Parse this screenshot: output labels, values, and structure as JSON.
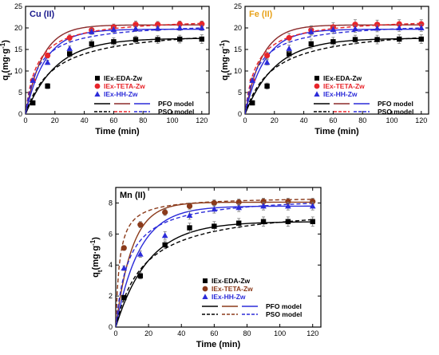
{
  "chart_data": [
    {
      "type": "scatter",
      "title": "Cu (II)",
      "title_color": "#1a1a8c",
      "xlabel": "Time (min)",
      "ylabel_main": "q",
      "ylabel_sub": "t",
      "ylabel_rest": "(mg·g",
      "ylabel_sup": "-1",
      "ylabel_close": ")",
      "xlim": [
        0,
        125
      ],
      "ylim": [
        0,
        25
      ],
      "xticks": [
        0,
        20,
        40,
        60,
        80,
        100,
        120
      ],
      "yticks": [
        0,
        5,
        10,
        15,
        20,
        25
      ],
      "series": [
        {
          "name": "IEx-EDA-Zw",
          "color": "#000000",
          "marker": "square",
          "x": [
            5,
            15,
            30,
            45,
            60,
            75,
            90,
            105,
            120
          ],
          "y": [
            2.6,
            6.5,
            14.0,
            16.3,
            16.8,
            17.3,
            17.3,
            17.4,
            17.4
          ],
          "err": [
            0.4,
            0.6,
            0.8,
            0.9,
            0.9,
            0.8,
            0.9,
            0.9,
            1.0
          ]
        },
        {
          "name": "IEx-TETA-Zw",
          "color": "#e8242a",
          "marker": "circle",
          "x": [
            5,
            15,
            30,
            45,
            60,
            75,
            90,
            105,
            120
          ],
          "y": [
            7.8,
            13.6,
            17.7,
            19.5,
            20.2,
            20.8,
            20.8,
            20.9,
            20.9
          ],
          "err": [
            0.4,
            0.6,
            0.8,
            0.7,
            0.7,
            0.8,
            0.7,
            0.7,
            0.7
          ]
        },
        {
          "name": "IEx-HH-Zw",
          "color": "#2b2bd9",
          "marker": "triangle",
          "x": [
            5,
            15,
            30,
            45,
            60,
            75,
            90,
            105,
            120
          ],
          "y": [
            7.8,
            12.0,
            15.2,
            19.1,
            19.6,
            19.8,
            19.9,
            20.0,
            20.0
          ],
          "err": [
            0.4,
            0.5,
            0.6,
            0.6,
            0.6,
            0.6,
            0.6,
            0.6,
            0.6
          ]
        }
      ],
      "models": [
        {
          "series": "IEx-EDA-Zw",
          "type": "PFO",
          "qe": 17.6,
          "k": 0.048,
          "color": "#000000"
        },
        {
          "series": "IEx-TETA-Zw",
          "type": "PFO",
          "qe": 20.7,
          "k": 0.088,
          "color": "#8b2b2b"
        },
        {
          "series": "IEx-HH-Zw",
          "type": "PFO",
          "qe": 19.7,
          "k": 0.075,
          "color": "#2b2bd9"
        },
        {
          "series": "IEx-EDA-Zw",
          "type": "PSO",
          "qe": 20.5,
          "k": 0.0026,
          "color": "#000000"
        },
        {
          "series": "IEx-TETA-Zw",
          "type": "PSO",
          "qe": 22.4,
          "k": 0.0058,
          "color": "#e8242a"
        },
        {
          "series": "IEx-HH-Zw",
          "type": "PSO",
          "qe": 21.4,
          "k": 0.0055,
          "color": "#2b2bd9"
        }
      ],
      "legend": {
        "placement": "lower-right",
        "items": [
          {
            "label": "IEx-EDA-Zw",
            "color": "#000000"
          },
          {
            "label": "IEx-TETA-Zw",
            "color": "#e8242a"
          },
          {
            "label": "IEx-HH-Zw",
            "color": "#2b2bd9"
          }
        ],
        "pfo_label": "PFO model",
        "pso_label": "PSO model"
      }
    },
    {
      "type": "scatter",
      "title": "Fe (II)",
      "title_color": "#e8a21a",
      "xlabel": "Time (min)",
      "ylabel_main": "q",
      "ylabel_sub": "t",
      "ylabel_rest": "(mg·g",
      "ylabel_sup": "-1",
      "ylabel_close": ")",
      "xlim": [
        0,
        125
      ],
      "ylim": [
        0,
        25
      ],
      "xticks": [
        0,
        20,
        40,
        60,
        80,
        100,
        120
      ],
      "yticks": [
        0,
        5,
        10,
        15,
        20,
        25
      ],
      "series": [
        {
          "name": "IEx-EDA-Zw",
          "color": "#000000",
          "marker": "square",
          "x": [
            5,
            15,
            30,
            45,
            60,
            75,
            90,
            105,
            120
          ],
          "y": [
            2.6,
            6.5,
            14.0,
            16.3,
            16.8,
            17.3,
            17.3,
            17.4,
            17.4
          ],
          "err": [
            0.5,
            0.7,
            1.0,
            1.1,
            1.0,
            1.0,
            1.0,
            1.0,
            1.0
          ]
        },
        {
          "name": "IEx-TETA-Zw",
          "color": "#e8242a",
          "marker": "circle",
          "x": [
            5,
            15,
            30,
            45,
            60,
            75,
            90,
            105,
            120
          ],
          "y": [
            7.8,
            13.6,
            17.7,
            19.5,
            20.2,
            20.8,
            20.8,
            20.9,
            20.9
          ],
          "err": [
            0.5,
            0.8,
            1.0,
            1.0,
            1.0,
            1.1,
            1.0,
            1.0,
            1.0
          ]
        },
        {
          "name": "IEx-HH-Zw",
          "color": "#2b2bd9",
          "marker": "triangle",
          "x": [
            5,
            15,
            30,
            45,
            60,
            75,
            90,
            105,
            120
          ],
          "y": [
            7.8,
            12.0,
            15.2,
            19.1,
            19.6,
            19.8,
            19.9,
            20.0,
            20.0
          ],
          "err": [
            0.5,
            0.6,
            0.8,
            0.8,
            0.8,
            0.8,
            0.8,
            0.8,
            0.8
          ]
        }
      ],
      "models": [
        {
          "series": "IEx-EDA-Zw",
          "type": "PFO",
          "qe": 17.6,
          "k": 0.048,
          "color": "#000000"
        },
        {
          "series": "IEx-TETA-Zw",
          "type": "PFO",
          "qe": 20.7,
          "k": 0.088,
          "color": "#8b2b2b"
        },
        {
          "series": "IEx-HH-Zw",
          "type": "PFO",
          "qe": 19.7,
          "k": 0.075,
          "color": "#2b2bd9"
        },
        {
          "series": "IEx-EDA-Zw",
          "type": "PSO",
          "qe": 20.5,
          "k": 0.0026,
          "color": "#000000"
        },
        {
          "series": "IEx-TETA-Zw",
          "type": "PSO",
          "qe": 22.4,
          "k": 0.0058,
          "color": "#e8242a"
        },
        {
          "series": "IEx-HH-Zw",
          "type": "PSO",
          "qe": 21.4,
          "k": 0.0055,
          "color": "#2b2bd9"
        }
      ],
      "legend": {
        "placement": "lower-right",
        "items": [
          {
            "label": "IEx-EDA-Zw",
            "color": "#000000"
          },
          {
            "label": "IEx-TETA-Zw",
            "color": "#e8242a"
          },
          {
            "label": "IEx-HH-Zw",
            "color": "#2b2bd9"
          }
        ],
        "pfo_label": "PFO model",
        "pso_label": "PSO model"
      }
    },
    {
      "type": "scatter",
      "title": "Mn (II)",
      "title_color": "#000000",
      "xlabel": "Time (min)",
      "ylabel_main": "q",
      "ylabel_sub": "t",
      "ylabel_rest": "(mg·g",
      "ylabel_sup": "-1",
      "ylabel_close": ")",
      "xlim": [
        0,
        125
      ],
      "ylim": [
        0,
        9
      ],
      "xticks": [
        0,
        20,
        40,
        60,
        80,
        100,
        120
      ],
      "yticks": [
        0,
        2,
        4,
        6,
        8
      ],
      "series": [
        {
          "name": "IEx-EDA-Zw",
          "color": "#000000",
          "marker": "square",
          "x": [
            5,
            15,
            30,
            45,
            60,
            75,
            90,
            105,
            120
          ],
          "y": [
            1.9,
            3.3,
            5.3,
            6.4,
            6.5,
            6.7,
            6.8,
            6.8,
            6.8
          ],
          "err": [
            0.15,
            0.2,
            0.25,
            0.3,
            0.3,
            0.3,
            0.3,
            0.3,
            0.3
          ]
        },
        {
          "name": "IEx-TETA-Zw",
          "color": "#8b3a1a",
          "marker": "circle",
          "x": [
            5,
            15,
            30,
            45,
            60,
            75,
            90,
            105,
            120
          ],
          "y": [
            5.1,
            6.6,
            7.4,
            7.8,
            8.0,
            8.05,
            8.1,
            8.1,
            8.1
          ],
          "err": [
            0.15,
            0.2,
            0.2,
            0.2,
            0.2,
            0.2,
            0.2,
            0.2,
            0.2
          ]
        },
        {
          "name": "IEx-HH-Zw",
          "color": "#2b2bd9",
          "marker": "triangle",
          "x": [
            5,
            15,
            30,
            45,
            60,
            75,
            90,
            105,
            120
          ],
          "y": [
            3.8,
            4.7,
            5.9,
            7.2,
            7.6,
            7.7,
            7.8,
            7.8,
            7.8
          ],
          "err": [
            0.15,
            0.2,
            0.25,
            0.25,
            0.25,
            0.25,
            0.25,
            0.25,
            0.25
          ]
        }
      ],
      "models": [
        {
          "series": "IEx-EDA-Zw",
          "type": "PFO",
          "qe": 6.8,
          "k": 0.05,
          "color": "#000000"
        },
        {
          "series": "IEx-TETA-Zw",
          "type": "PFO",
          "qe": 8.05,
          "k": 0.1,
          "color": "#8b3a1a"
        },
        {
          "series": "IEx-HH-Zw",
          "type": "PFO",
          "qe": 7.8,
          "k": 0.07,
          "color": "#2b2bd9"
        },
        {
          "series": "IEx-EDA-Zw",
          "type": "PSO",
          "qe": 7.9,
          "k": 0.0075,
          "color": "#000000"
        },
        {
          "series": "IEx-TETA-Zw",
          "type": "PSO",
          "qe": 8.4,
          "k": 0.05,
          "color": "#8b3a1a"
        },
        {
          "series": "IEx-HH-Zw",
          "type": "PSO",
          "qe": 8.5,
          "k": 0.015,
          "color": "#2b2bd9"
        }
      ],
      "legend": {
        "placement": "lower-right",
        "items": [
          {
            "label": "IEx-EDA-Zw",
            "color": "#000000"
          },
          {
            "label": "IEx-TETA-Zw",
            "color": "#8b3a1a"
          },
          {
            "label": "IEx-HH-Zw",
            "color": "#2b2bd9"
          }
        ],
        "pfo_label": "PFO model",
        "pso_label": "PSO model"
      }
    }
  ]
}
